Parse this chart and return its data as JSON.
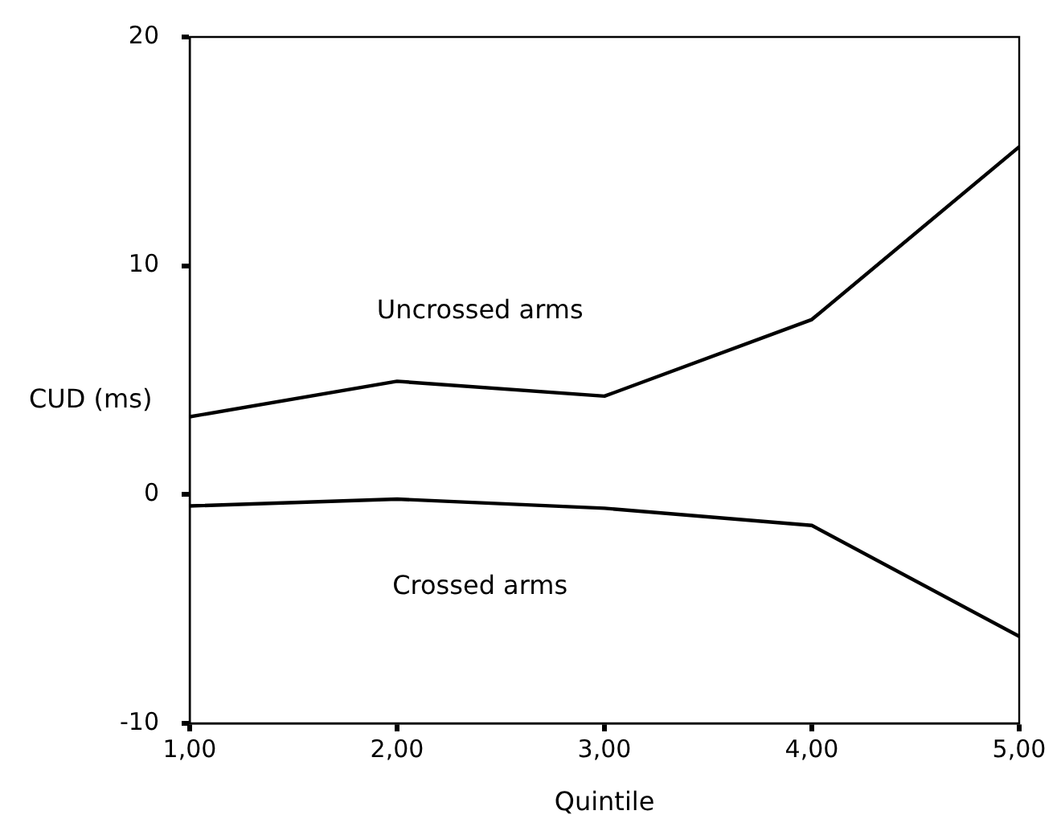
{
  "chart_data": {
    "type": "line",
    "xlabel": "Quintile",
    "ylabel": "CUD (ms)",
    "x": [
      1,
      2,
      3,
      4,
      5
    ],
    "xlim": [
      1,
      5
    ],
    "xticks": [
      {
        "value": 1,
        "label": "1,00"
      },
      {
        "value": 2,
        "label": "2,00"
      },
      {
        "value": 3,
        "label": "3,00"
      },
      {
        "value": 4,
        "label": "4,00"
      },
      {
        "value": 5,
        "label": "5,00"
      }
    ],
    "ylim": [
      -10,
      20
    ],
    "yticks": [
      -10,
      0,
      10,
      20
    ],
    "series": [
      {
        "name": "Uncrossed arms",
        "color": "#000000",
        "values": [
          3.4,
          4.95,
          4.3,
          7.65,
          15.2
        ]
      },
      {
        "name": "Crossed arms",
        "color": "#000000",
        "values": [
          -0.5,
          -0.2,
          -0.6,
          -1.35,
          -6.2
        ]
      }
    ],
    "grid": false,
    "legend": false,
    "marker": "none",
    "line_style": "solid"
  }
}
